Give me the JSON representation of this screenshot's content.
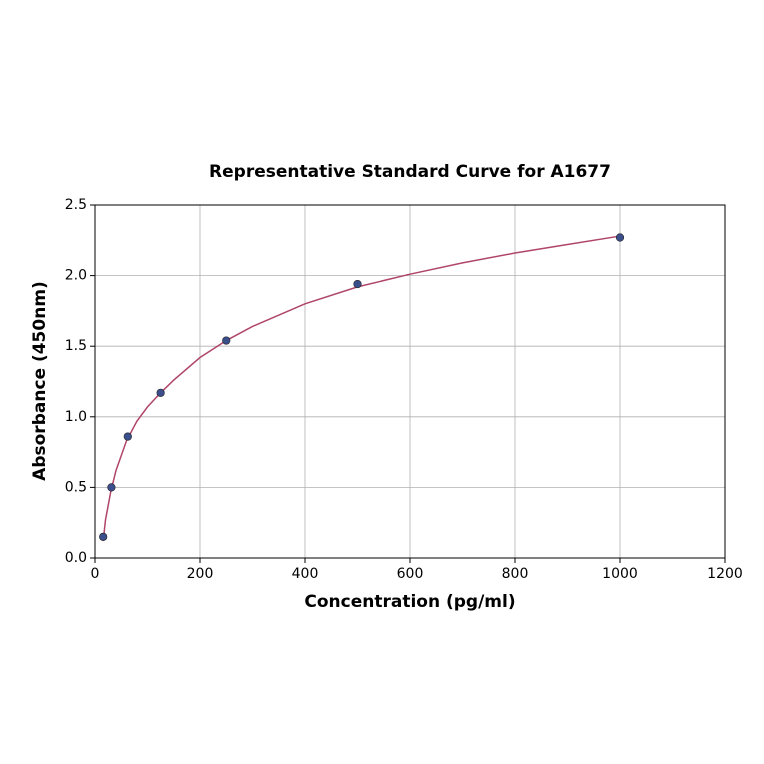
{
  "chart_data": {
    "type": "scatter",
    "title": "Representative Standard Curve for A1677",
    "xlabel": "Concentration (pg/ml)",
    "ylabel": "Absorbance (450nm)",
    "xlim": [
      0,
      1200
    ],
    "xticks": [
      0,
      200,
      400,
      600,
      800,
      1000,
      1200
    ],
    "ylim": [
      0,
      2.5
    ],
    "yticks": [
      {
        "value": 0,
        "label": "0.0"
      },
      0.5,
      {
        "value": 1,
        "label": "1.0"
      },
      1.5,
      {
        "value": 2,
        "label": "2.0"
      },
      2.5
    ],
    "grid": true,
    "series": [
      {
        "type": "scatter",
        "color": "#3b4f8c",
        "x": [
          15.6,
          31.25,
          62.5,
          125,
          250,
          500,
          1000
        ],
        "values": [
          0.15,
          0.5,
          0.86,
          1.17,
          1.54,
          1.94,
          2.27
        ]
      },
      {
        "type": "line",
        "color": "#b0456a",
        "x": [
          15.6,
          20,
          30,
          40,
          60,
          80,
          100,
          125,
          150,
          200,
          250,
          300,
          400,
          500,
          600,
          700,
          800,
          900,
          1000
        ],
        "values": [
          0.12,
          0.27,
          0.47,
          0.62,
          0.83,
          0.97,
          1.07,
          1.17,
          1.26,
          1.42,
          1.54,
          1.64,
          1.8,
          1.92,
          2.01,
          2.09,
          2.16,
          2.22,
          2.28
        ]
      }
    ]
  }
}
